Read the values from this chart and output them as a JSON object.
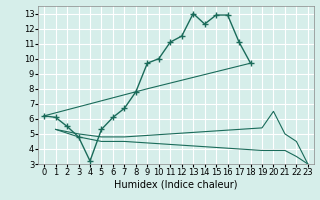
{
  "xlabel": "Humidex (Indice chaleur)",
  "xlim": [
    -0.5,
    23.5
  ],
  "ylim": [
    3,
    13.5
  ],
  "xticks": [
    0,
    1,
    2,
    3,
    4,
    5,
    6,
    7,
    8,
    9,
    10,
    11,
    12,
    13,
    14,
    15,
    16,
    17,
    18,
    19,
    20,
    21,
    22,
    23
  ],
  "yticks": [
    3,
    4,
    5,
    6,
    7,
    8,
    9,
    10,
    11,
    12,
    13
  ],
  "background_color": "#d6eeea",
  "grid_color": "#ffffff",
  "line_color": "#1a6b5a",
  "line1_x": [
    0,
    1,
    2,
    3,
    4,
    5,
    6,
    7,
    8,
    9,
    10,
    11,
    12,
    13,
    14,
    15,
    16,
    17,
    18
  ],
  "line1_y": [
    6.2,
    6.1,
    5.5,
    4.8,
    3.2,
    5.3,
    6.1,
    6.7,
    7.8,
    9.7,
    10.0,
    11.1,
    11.5,
    13.0,
    12.3,
    12.9,
    12.9,
    11.1,
    9.7
  ],
  "line2_x": [
    0,
    9,
    18
  ],
  "line2_y": [
    6.2,
    8.0,
    9.7
  ],
  "line3_x": [
    1,
    3,
    5,
    7,
    9,
    11,
    13,
    15,
    17,
    19,
    20,
    21,
    22,
    23
  ],
  "line3_y": [
    5.3,
    5.0,
    4.8,
    4.8,
    4.9,
    5.0,
    5.1,
    5.2,
    5.3,
    5.4,
    6.5,
    5.0,
    4.5,
    3.0
  ],
  "line4_x": [
    1,
    3,
    5,
    7,
    9,
    11,
    13,
    15,
    17,
    19,
    20,
    21,
    22,
    23
  ],
  "line4_y": [
    5.3,
    4.8,
    4.5,
    4.5,
    4.4,
    4.3,
    4.2,
    4.1,
    4.0,
    3.9,
    3.9,
    3.9,
    3.5,
    3.0
  ]
}
